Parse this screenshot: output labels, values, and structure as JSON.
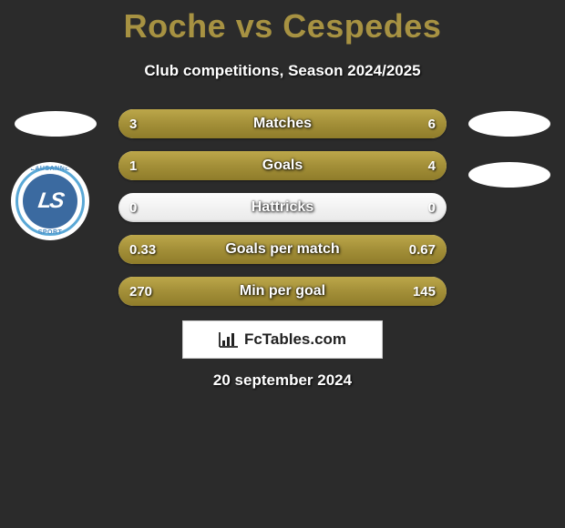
{
  "title_color": "#a79242",
  "player1": "Roche",
  "player2": "Cespedes",
  "vs_word": "vs",
  "subtitle": "Club competitions, Season 2024/2025",
  "club_badge": {
    "top_text": "LAUSANNE",
    "bottom_text": "SPORT",
    "initials": "LS",
    "outer_ring_color": "#5aa8d6",
    "inner_color": "#3b6aa0"
  },
  "bar_fill_color_top": "#bca74a",
  "bar_fill_color_mid": "#a38f38",
  "bar_fill_color_bot": "#8f7c2a",
  "bar_track_color": "#f2f2f2",
  "rows": [
    {
      "label": "Matches",
      "left": "3",
      "right": "6",
      "left_pct": 33.3,
      "right_pct": 66.7
    },
    {
      "label": "Goals",
      "left": "1",
      "right": "4",
      "left_pct": 20.0,
      "right_pct": 80.0
    },
    {
      "label": "Hattricks",
      "left": "0",
      "right": "0",
      "left_pct": 0.0,
      "right_pct": 0.0
    },
    {
      "label": "Goals per match",
      "left": "0.33",
      "right": "0.67",
      "left_pct": 33.0,
      "right_pct": 67.0
    },
    {
      "label": "Min per goal",
      "left": "270",
      "right": "145",
      "left_pct": 65.1,
      "right_pct": 34.9
    }
  ],
  "attribution": "FcTables.com",
  "footer_date": "20 september 2024"
}
